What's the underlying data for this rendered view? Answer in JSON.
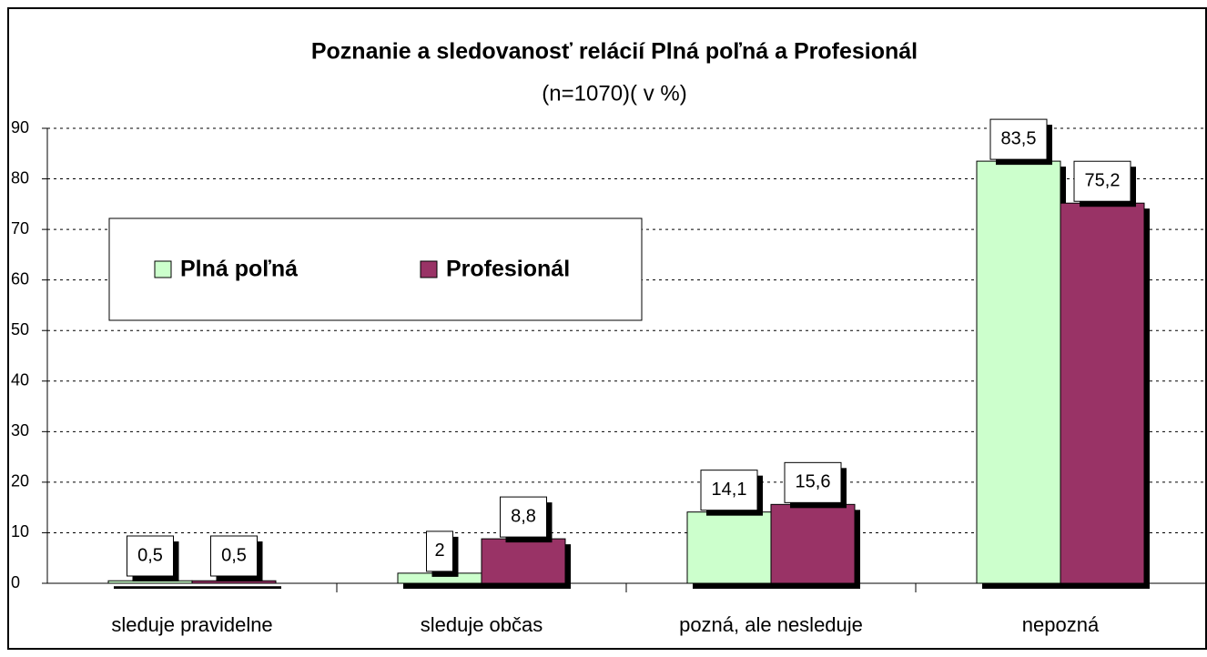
{
  "chart_data": {
    "type": "bar",
    "title": "Poznanie a sledovanosť relácií Plná poľná a Profesionál",
    "subtitle": "(n=1070)( v %)",
    "categories": [
      "sleduje pravidelne",
      "sleduje občas",
      "pozná, ale nesleduje",
      "nepozná"
    ],
    "series": [
      {
        "name": "Plná poľná",
        "color": "#ccffcc",
        "values": [
          0.5,
          2,
          14.1,
          83.5
        ],
        "value_labels": [
          "0,5",
          "2",
          "14,1",
          "83,5"
        ]
      },
      {
        "name": "Profesionál",
        "color": "#993366",
        "values": [
          0.5,
          8.8,
          15.6,
          75.2
        ],
        "value_labels": [
          "0,5",
          "8,8",
          "15,6",
          "75,2"
        ]
      }
    ],
    "ylim": [
      0,
      90
    ],
    "yticks": [
      0,
      10,
      20,
      30,
      40,
      50,
      60,
      70,
      80,
      90
    ],
    "grid": true
  }
}
